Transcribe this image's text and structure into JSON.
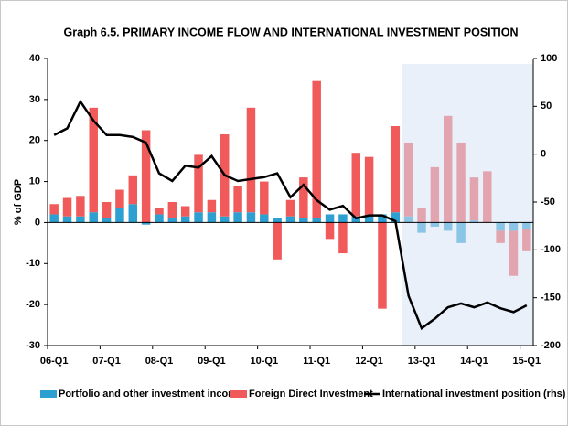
{
  "chart_data": {
    "type": "bar",
    "title": "Graph 6.5. PRIMARY INCOME FLOW AND INTERNATIONAL INVESTMENT POSITION",
    "ylabel": "% of GDP",
    "categories": [
      "06-Q1",
      null,
      null,
      null,
      "07-Q1",
      null,
      null,
      null,
      "08-Q1",
      null,
      null,
      null,
      "09-Q1",
      null,
      null,
      null,
      "10-Q1",
      null,
      null,
      null,
      "11-Q1",
      null,
      null,
      null,
      "12-Q1",
      null,
      null,
      null,
      "13-Q1",
      null,
      null,
      null,
      "14-Q1",
      null,
      null,
      null,
      "15-Q1"
    ],
    "series": [
      {
        "name": "Portfolio and other investment income",
        "color": "#2e9fd1",
        "values": [
          2,
          1.5,
          1.5,
          2.5,
          1,
          3.5,
          4.5,
          -0.5,
          2,
          1,
          1.5,
          2.5,
          2.5,
          1.5,
          2.5,
          2.5,
          2,
          1,
          1.5,
          1,
          1,
          2,
          2,
          1.5,
          1.5,
          2,
          2.5,
          1.5,
          -2.5,
          -1,
          -2,
          -5,
          0.5,
          0,
          -2,
          -2,
          -1.5
        ]
      },
      {
        "name": "Foreign Direct Investment",
        "color": "#f05a5a",
        "values": [
          2.5,
          4.5,
          5,
          25.5,
          4,
          4.5,
          7,
          22.5,
          1.5,
          4,
          2.5,
          14,
          3,
          20,
          6.5,
          25.5,
          8,
          -9,
          4,
          10,
          33.5,
          -4,
          -7.5,
          15.5,
          14.5,
          -21,
          21,
          18,
          3.5,
          13.5,
          26,
          19.5,
          10.5,
          12.5,
          -3,
          -11,
          -5.5
        ]
      },
      {
        "name": "International investment position (rhs)",
        "color": "#000000",
        "type": "line",
        "axis": "y2",
        "values": [
          20,
          27,
          55,
          35,
          20,
          20,
          18,
          12,
          -20,
          -28,
          -12,
          -14,
          -2,
          -22,
          -28,
          -26,
          -24,
          -20,
          -45,
          -32,
          -48,
          -58,
          -54,
          -67,
          -64,
          -64,
          -70,
          -148,
          -182,
          -172,
          -160,
          -156,
          -160,
          -155,
          -161,
          -165,
          -158
        ]
      }
    ],
    "ylim": [
      -30,
      40
    ],
    "yticks": [
      -30,
      -20,
      -10,
      0,
      10,
      20,
      30,
      40
    ],
    "y2lim": [
      -200,
      100
    ],
    "y2ticks": [
      -200,
      -150,
      -100,
      -50,
      0,
      50,
      100
    ],
    "legend": "bottom"
  }
}
